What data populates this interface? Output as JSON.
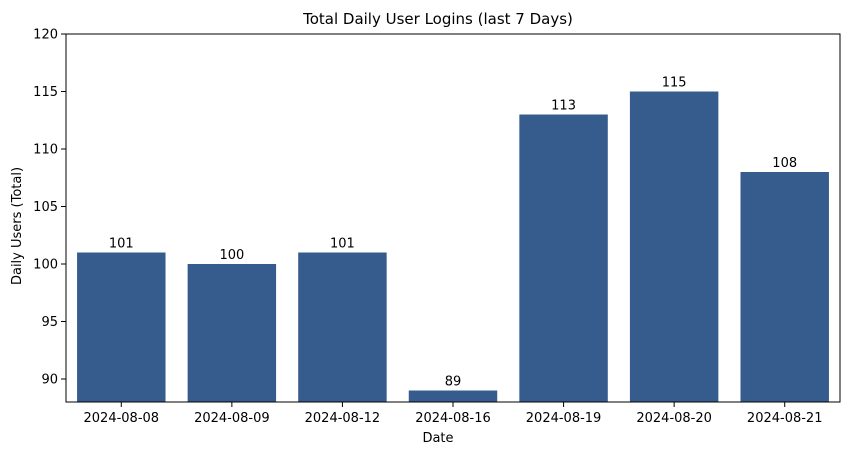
{
  "chart_data": {
    "type": "bar",
    "title": "Total Daily User Logins (last 7 Days)",
    "xlabel": "Date",
    "ylabel": "Daily Users (Total)",
    "categories": [
      "2024-08-08",
      "2024-08-09",
      "2024-08-12",
      "2024-08-16",
      "2024-08-19",
      "2024-08-20",
      "2024-08-21"
    ],
    "values": [
      101,
      100,
      101,
      89,
      113,
      115,
      108
    ],
    "data_labels": [
      "101",
      "100",
      "101",
      "89",
      "113",
      "115",
      "108"
    ],
    "ylim": [
      88,
      120
    ],
    "yticks": [
      90,
      95,
      100,
      105,
      110,
      115,
      120
    ],
    "ytick_labels": [
      "90",
      "95",
      "100",
      "105",
      "110",
      "115",
      "120"
    ],
    "bar_color": "#365c8d",
    "grid": false,
    "legend": "none"
  }
}
